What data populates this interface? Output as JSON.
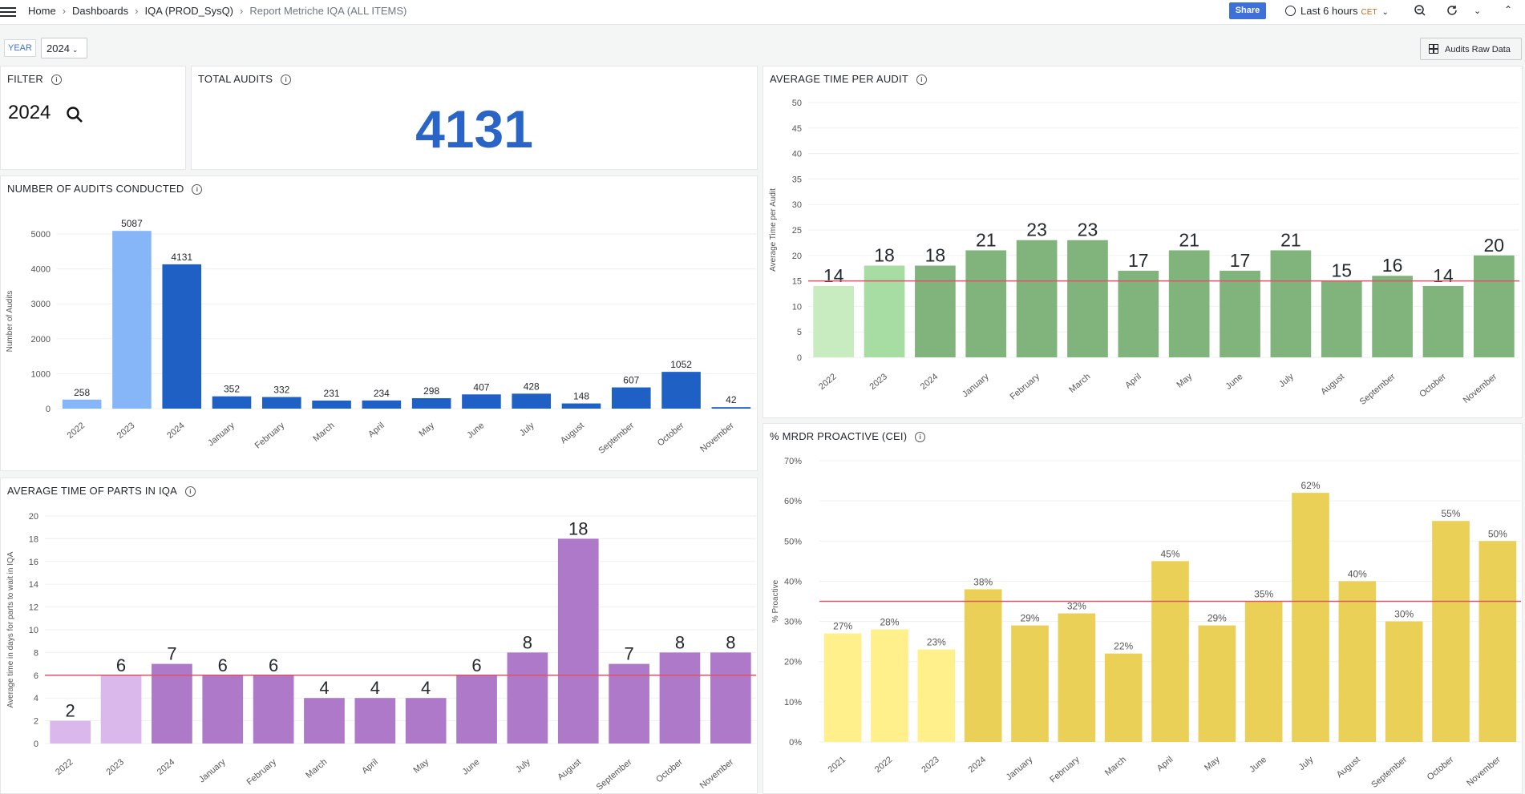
{
  "nav": {
    "breadcrumb": [
      "Home",
      "Dashboards",
      "IQA (PROD_SysQ)",
      "Report Metriche IQA (ALL ITEMS)"
    ],
    "share_label": "Share",
    "time_range": "Last 6 hours",
    "timezone": "CET"
  },
  "controls": {
    "year_label": "YEAR",
    "year_value": "2024",
    "raw_data_button": "Audits Raw Data"
  },
  "filter_panel": {
    "title": "FILTER",
    "value": "2024"
  },
  "total_panel": {
    "title": "TOTAL AUDITS",
    "value": "4131"
  },
  "colors": {
    "blue_light": "#86b6f7",
    "blue": "#1f60c4",
    "green_light": "#c8ebc0",
    "green_mid": "#a7dca3",
    "green": "#80b47c",
    "purple_light": "#dab8ec",
    "purple": "#ad79c8",
    "yellow_light": "#fff08c",
    "yellow": "#ebd058",
    "threshold": "#e0516a",
    "accent": "#3d71d9"
  },
  "chart_data": [
    {
      "id": "audits",
      "type": "bar",
      "title": "NUMBER OF AUDITS CONDUCTED",
      "ylabel": "Number of Audits",
      "ylim": [
        0,
        5000
      ],
      "yticks": [
        "0",
        "1000",
        "2000",
        "3000",
        "4000",
        "5000"
      ],
      "ytick_values": [
        0,
        1000,
        2000,
        3000,
        4000,
        5000
      ],
      "categories": [
        "2022",
        "2023",
        "2024",
        "January",
        "February",
        "March",
        "April",
        "May",
        "June",
        "July",
        "August",
        "September",
        "October",
        "November"
      ],
      "values": [
        258,
        5087,
        4131,
        352,
        332,
        231,
        234,
        298,
        407,
        428,
        148,
        607,
        1052,
        42
      ],
      "labels": [
        "258",
        "5087",
        "4131",
        "352",
        "332",
        "231",
        "234",
        "298",
        "407",
        "428",
        "148",
        "607",
        "1052",
        "42"
      ],
      "color_keys": [
        "blue_light",
        "blue_light",
        "blue",
        "blue",
        "blue",
        "blue",
        "blue",
        "blue",
        "blue",
        "blue",
        "blue",
        "blue",
        "blue",
        "blue"
      ]
    },
    {
      "id": "avgtime",
      "type": "bar",
      "title": "AVERAGE TIME PER AUDIT",
      "ylabel": "Average Time per Audit",
      "ylim": [
        0,
        50
      ],
      "yticks": [
        "0",
        "5",
        "10",
        "15",
        "20",
        "25",
        "30",
        "35",
        "40",
        "45",
        "50"
      ],
      "ytick_values": [
        0,
        5,
        10,
        15,
        20,
        25,
        30,
        35,
        40,
        45,
        50
      ],
      "threshold": 15,
      "categories": [
        "2022",
        "2023",
        "2024",
        "January",
        "February",
        "March",
        "April",
        "May",
        "June",
        "July",
        "August",
        "September",
        "October",
        "November"
      ],
      "values": [
        14,
        18,
        18,
        21,
        23,
        23,
        17,
        21,
        17,
        21,
        15,
        16,
        14,
        20
      ],
      "labels": [
        "14",
        "18",
        "18",
        "21",
        "23",
        "23",
        "17",
        "21",
        "17",
        "21",
        "15",
        "16",
        "14",
        "20"
      ],
      "color_keys": [
        "green_light",
        "green_mid",
        "green",
        "green",
        "green",
        "green",
        "green",
        "green",
        "green",
        "green",
        "green",
        "green",
        "green",
        "green"
      ]
    },
    {
      "id": "parts",
      "type": "bar",
      "title": "AVERAGE TIME OF PARTS IN IQA",
      "ylabel": "Average time in days for parts to wait in IQA",
      "ylim": [
        0,
        20
      ],
      "yticks": [
        "0",
        "2",
        "4",
        "6",
        "8",
        "10",
        "12",
        "14",
        "16",
        "18",
        "20"
      ],
      "ytick_values": [
        0,
        2,
        4,
        6,
        8,
        10,
        12,
        14,
        16,
        18,
        20
      ],
      "threshold": 6,
      "categories": [
        "2022",
        "2023",
        "2024",
        "January",
        "February",
        "March",
        "April",
        "May",
        "June",
        "July",
        "August",
        "September",
        "October",
        "November"
      ],
      "values": [
        2,
        6,
        7,
        6,
        6,
        4,
        4,
        4,
        6,
        8,
        18,
        7,
        8,
        8
      ],
      "labels": [
        "2",
        "6",
        "7",
        "6",
        "6",
        "4",
        "4",
        "4",
        "6",
        "8",
        "18",
        "7",
        "8",
        "8"
      ],
      "color_keys": [
        "purple_light",
        "purple_light",
        "purple",
        "purple",
        "purple",
        "purple",
        "purple",
        "purple",
        "purple",
        "purple",
        "purple",
        "purple",
        "purple",
        "purple"
      ]
    },
    {
      "id": "mrdr",
      "type": "bar",
      "title": "% MRDR PROACTIVE (CEI)",
      "ylabel": "% Proactive",
      "ylim": [
        0,
        70
      ],
      "yticks": [
        "0%",
        "10%",
        "20%",
        "30%",
        "40%",
        "50%",
        "60%",
        "70%"
      ],
      "ytick_values": [
        0,
        10,
        20,
        30,
        40,
        50,
        60,
        70
      ],
      "threshold": 35,
      "categories": [
        "2021",
        "2022",
        "2023",
        "2024",
        "January",
        "February",
        "March",
        "April",
        "May",
        "June",
        "July",
        "August",
        "September",
        "October",
        "November"
      ],
      "values": [
        27,
        28,
        23,
        38,
        29,
        32,
        22,
        45,
        29,
        35,
        62,
        40,
        30,
        55,
        50
      ],
      "labels": [
        "27%",
        "28%",
        "23%",
        "38%",
        "29%",
        "32%",
        "22%",
        "45%",
        "29%",
        "35%",
        "62%",
        "40%",
        "30%",
        "55%",
        "50%"
      ],
      "color_keys": [
        "yellow_light",
        "yellow_light",
        "yellow_light",
        "yellow",
        "yellow",
        "yellow",
        "yellow",
        "yellow",
        "yellow",
        "yellow",
        "yellow",
        "yellow",
        "yellow",
        "yellow",
        "yellow"
      ]
    }
  ]
}
